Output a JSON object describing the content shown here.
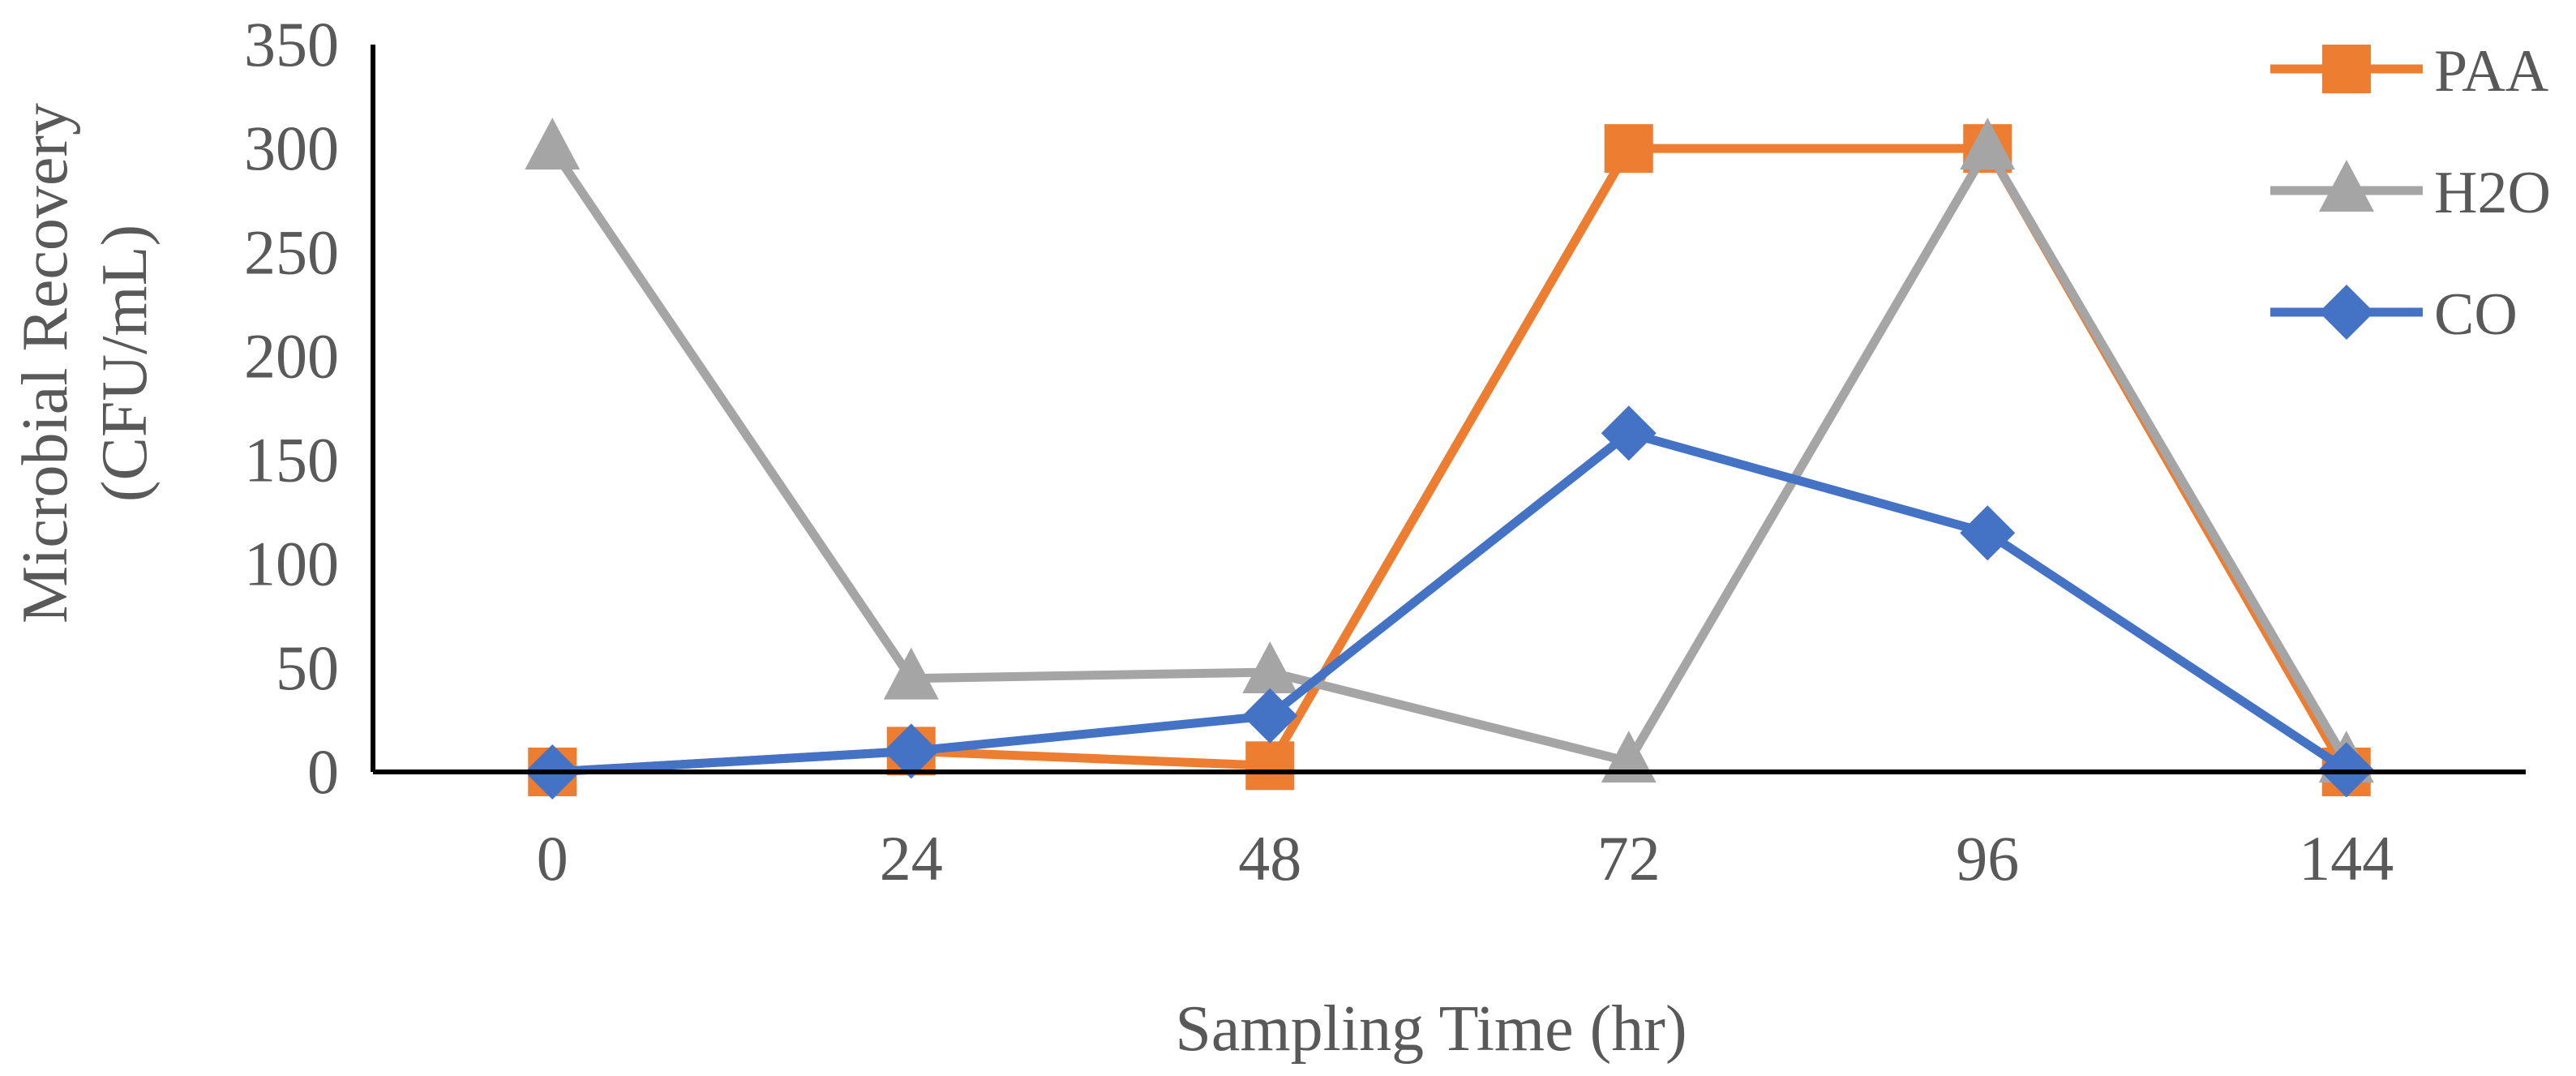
{
  "chart_data": {
    "type": "line",
    "categories": [
      "0",
      "24",
      "48",
      "72",
      "96",
      "144"
    ],
    "series": [
      {
        "name": "PAA",
        "values": [
          0,
          10,
          3,
          300,
          300,
          0
        ],
        "color": "#ED7D31",
        "marker": "square"
      },
      {
        "name": "H2O",
        "values": [
          300,
          45,
          48,
          5,
          300,
          5
        ],
        "color": "#A5A5A5",
        "marker": "triangle"
      },
      {
        "name": "CO",
        "values": [
          0,
          10,
          27,
          163,
          115,
          1
        ],
        "color": "#4472C4",
        "marker": "diamond"
      }
    ],
    "title": "",
    "xlabel": "Sampling Time (hr)",
    "ylabel": [
      "Microbial Recovery",
      "(CFU/mL)"
    ],
    "ylim": [
      0,
      350
    ],
    "yticks": [
      0,
      50,
      100,
      150,
      200,
      250,
      300,
      350
    ],
    "grid": false,
    "legend_position": "top-right"
  }
}
